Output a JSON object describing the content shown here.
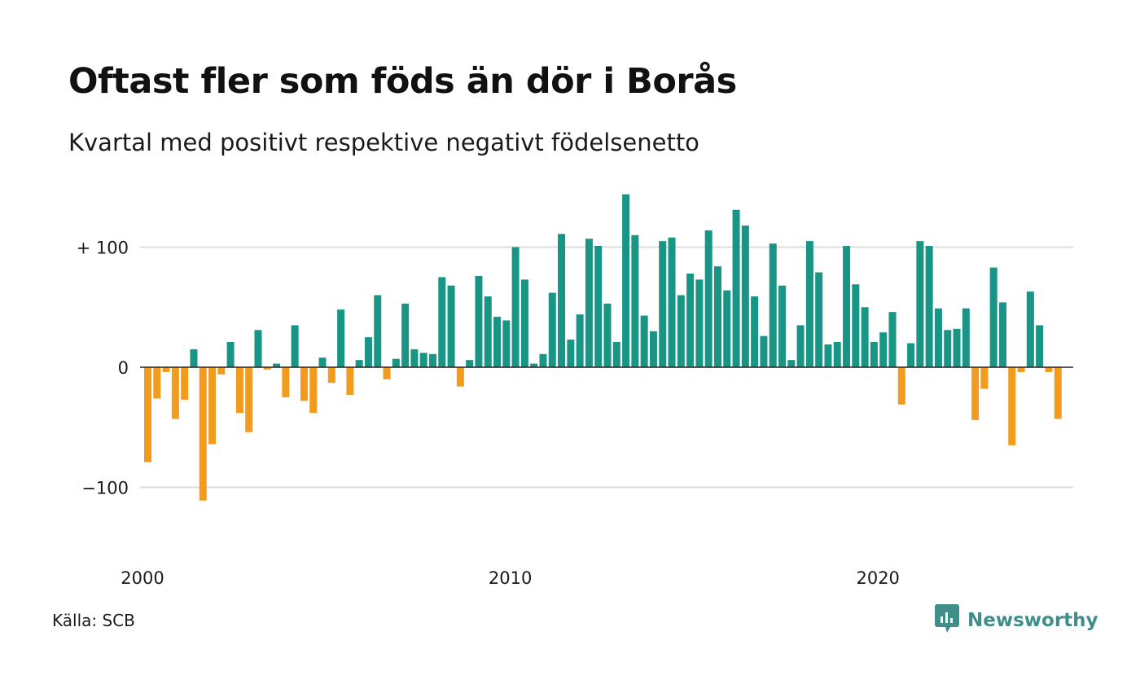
{
  "title": "Oftast fler som föds än dör i Borås",
  "subtitle": "Kvartal med positivt respektive negativt födelsenetto",
  "source": "Källa: SCB",
  "brand": {
    "name": "Newsworthy",
    "icon": "newsworthy-logo-icon",
    "color": "#3f8e8a"
  },
  "colors": {
    "positive": "#199586",
    "negative": "#f29b1c",
    "grid": "#dddddd",
    "zero_line": "#222222"
  },
  "chart_data": {
    "type": "bar",
    "title": "Oftast fler som föds än dör i Borås",
    "subtitle": "Kvartal med positivt respektive negativt födelsenetto",
    "xlabel": "",
    "ylabel": "",
    "x_start": "2000 Q1",
    "frequency": "quarterly",
    "x_ticks": [
      {
        "label": "2000",
        "index": 0
      },
      {
        "label": "2010",
        "index": 40
      },
      {
        "label": "2020",
        "index": 80
      }
    ],
    "y_ticks": [
      {
        "label": "+ 100",
        "value": 100
      },
      {
        "label": "0",
        "value": 0
      },
      {
        "label": "−100",
        "value": -100
      }
    ],
    "ylim": [
      -130,
      148
    ],
    "grid": true,
    "values": [
      -79,
      -26,
      -4,
      -43,
      -27,
      15,
      -111,
      -64,
      -6,
      21,
      -38,
      -54,
      31,
      -2,
      3,
      -25,
      35,
      -28,
      -38,
      8,
      -13,
      48,
      -23,
      6,
      25,
      60,
      -10,
      7,
      53,
      15,
      12,
      11,
      75,
      68,
      -16,
      6,
      76,
      59,
      42,
      39,
      100,
      73,
      3,
      11,
      62,
      111,
      23,
      44,
      107,
      101,
      53,
      21,
      144,
      110,
      43,
      30,
      105,
      108,
      60,
      78,
      73,
      114,
      84,
      64,
      131,
      118,
      59,
      26,
      103,
      68,
      6,
      35,
      105,
      79,
      19,
      21,
      101,
      69,
      50,
      21,
      29,
      46,
      -31,
      20,
      105,
      101,
      49,
      31,
      32,
      49,
      -44,
      -18,
      83,
      54,
      -65,
      -4,
      63,
      35,
      -4,
      -43
    ]
  }
}
